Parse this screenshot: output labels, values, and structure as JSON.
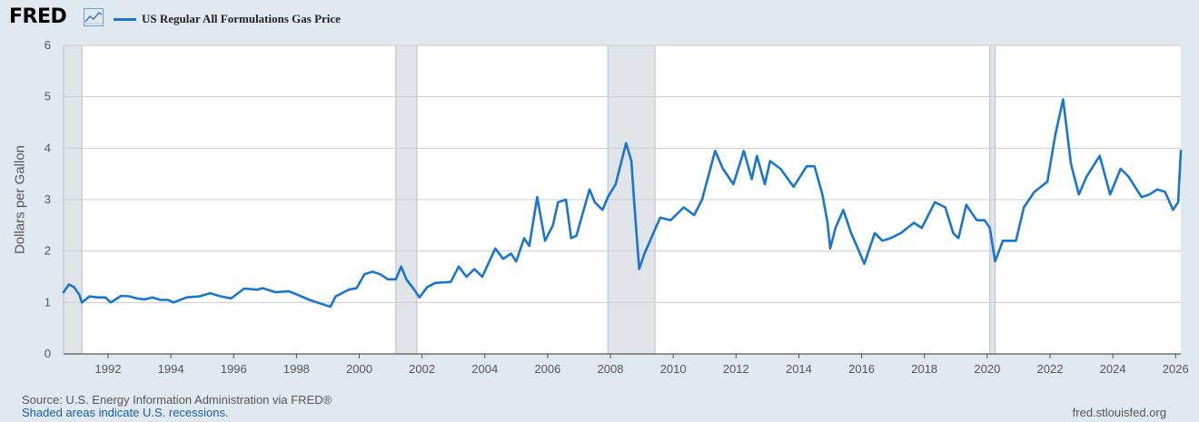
{
  "header": {
    "logo_text": "FRED",
    "logo_icon": "line-chart-icon",
    "legend_label": "US Regular All Formulations Gas Price"
  },
  "footer": {
    "source": "Source: U.S. Energy Information Administration via FRED®",
    "note": "Shaded areas indicate U.S. recessions.",
    "url": "fred.stlouisfed.org"
  },
  "colors": {
    "background": "#e1e9f0",
    "plot_area": "#ffffff",
    "series": "#1a75cf",
    "recession": "#e1e5ea",
    "grid": "#cccccc"
  },
  "chart_data": {
    "type": "line",
    "ylabel": "Dollars per Gallon",
    "xlabel": "",
    "ylim": [
      0,
      6
    ],
    "xlim": [
      "1990-08",
      "2026-03"
    ],
    "grid": true,
    "yticks": [
      "0",
      "1",
      "2",
      "3",
      "4",
      "5",
      "6"
    ],
    "xticks": [
      "1992",
      "1994",
      "1996",
      "1998",
      "2000",
      "2002",
      "2004",
      "2006",
      "2008",
      "2010",
      "2012",
      "2014",
      "2016",
      "2018",
      "2020",
      "2022",
      "2024",
      "2026"
    ],
    "recessions": [
      [
        "1990-08",
        "1991-03"
      ],
      [
        "2001-03",
        "2001-11"
      ],
      [
        "2007-12",
        "2009-06"
      ],
      [
        "2020-02",
        "2020-04"
      ]
    ],
    "series": [
      {
        "name": "US Regular All Formulations Gas Price",
        "points": [
          [
            "1990-08",
            1.2
          ],
          [
            "1990-10",
            1.35
          ],
          [
            "1990-12",
            1.3
          ],
          [
            "1991-02",
            1.15
          ],
          [
            "1991-03",
            1.0
          ],
          [
            "1991-06",
            1.12
          ],
          [
            "1991-09",
            1.1
          ],
          [
            "1991-12",
            1.1
          ],
          [
            "1992-02",
            1.0
          ],
          [
            "1992-06",
            1.13
          ],
          [
            "1992-09",
            1.12
          ],
          [
            "1992-12",
            1.08
          ],
          [
            "1993-03",
            1.06
          ],
          [
            "1993-06",
            1.1
          ],
          [
            "1993-09",
            1.05
          ],
          [
            "1993-12",
            1.05
          ],
          [
            "1994-02",
            1.0
          ],
          [
            "1994-07",
            1.1
          ],
          [
            "1994-12",
            1.12
          ],
          [
            "1995-04",
            1.18
          ],
          [
            "1995-08",
            1.12
          ],
          [
            "1995-12",
            1.08
          ],
          [
            "1996-05",
            1.27
          ],
          [
            "1996-10",
            1.25
          ],
          [
            "1996-12",
            1.28
          ],
          [
            "1997-05",
            1.2
          ],
          [
            "1997-10",
            1.22
          ],
          [
            "1997-12",
            1.18
          ],
          [
            "1998-06",
            1.05
          ],
          [
            "1998-12",
            0.95
          ],
          [
            "1999-02",
            0.92
          ],
          [
            "1999-04",
            1.12
          ],
          [
            "1999-09",
            1.25
          ],
          [
            "1999-12",
            1.28
          ],
          [
            "2000-03",
            1.55
          ],
          [
            "2000-06",
            1.6
          ],
          [
            "2000-09",
            1.55
          ],
          [
            "2000-12",
            1.45
          ],
          [
            "2001-03",
            1.45
          ],
          [
            "2001-05",
            1.7
          ],
          [
            "2001-07",
            1.45
          ],
          [
            "2001-10",
            1.25
          ],
          [
            "2001-12",
            1.1
          ],
          [
            "2002-03",
            1.3
          ],
          [
            "2002-06",
            1.38
          ],
          [
            "2002-12",
            1.4
          ],
          [
            "2003-03",
            1.7
          ],
          [
            "2003-06",
            1.5
          ],
          [
            "2003-09",
            1.65
          ],
          [
            "2003-12",
            1.5
          ],
          [
            "2004-05",
            2.05
          ],
          [
            "2004-08",
            1.85
          ],
          [
            "2004-11",
            1.95
          ],
          [
            "2005-01",
            1.8
          ],
          [
            "2005-04",
            2.25
          ],
          [
            "2005-06",
            2.1
          ],
          [
            "2005-09",
            3.05
          ],
          [
            "2005-12",
            2.2
          ],
          [
            "2006-03",
            2.5
          ],
          [
            "2006-05",
            2.95
          ],
          [
            "2006-08",
            3.0
          ],
          [
            "2006-10",
            2.25
          ],
          [
            "2006-12",
            2.3
          ],
          [
            "2007-05",
            3.2
          ],
          [
            "2007-07",
            2.95
          ],
          [
            "2007-10",
            2.8
          ],
          [
            "2007-12",
            3.05
          ],
          [
            "2008-03",
            3.3
          ],
          [
            "2008-07",
            4.1
          ],
          [
            "2008-09",
            3.75
          ],
          [
            "2008-10",
            3.0
          ],
          [
            "2008-12",
            1.65
          ],
          [
            "2009-02",
            1.95
          ],
          [
            "2009-05",
            2.3
          ],
          [
            "2009-08",
            2.65
          ],
          [
            "2009-12",
            2.6
          ],
          [
            "2010-05",
            2.85
          ],
          [
            "2010-09",
            2.7
          ],
          [
            "2010-12",
            3.0
          ],
          [
            "2011-05",
            3.95
          ],
          [
            "2011-08",
            3.6
          ],
          [
            "2011-12",
            3.3
          ],
          [
            "2012-04",
            3.95
          ],
          [
            "2012-07",
            3.4
          ],
          [
            "2012-09",
            3.85
          ],
          [
            "2012-12",
            3.3
          ],
          [
            "2013-02",
            3.75
          ],
          [
            "2013-06",
            3.6
          ],
          [
            "2013-11",
            3.25
          ],
          [
            "2014-04",
            3.65
          ],
          [
            "2014-07",
            3.65
          ],
          [
            "2014-10",
            3.1
          ],
          [
            "2014-12",
            2.55
          ],
          [
            "2015-01",
            2.05
          ],
          [
            "2015-03",
            2.45
          ],
          [
            "2015-06",
            2.8
          ],
          [
            "2015-09",
            2.35
          ],
          [
            "2015-12",
            2.0
          ],
          [
            "2016-02",
            1.75
          ],
          [
            "2016-06",
            2.35
          ],
          [
            "2016-09",
            2.2
          ],
          [
            "2016-12",
            2.25
          ],
          [
            "2017-04",
            2.35
          ],
          [
            "2017-09",
            2.55
          ],
          [
            "2017-12",
            2.45
          ],
          [
            "2018-05",
            2.95
          ],
          [
            "2018-09",
            2.85
          ],
          [
            "2018-12",
            2.35
          ],
          [
            "2019-02",
            2.25
          ],
          [
            "2019-05",
            2.9
          ],
          [
            "2019-09",
            2.6
          ],
          [
            "2019-12",
            2.6
          ],
          [
            "2020-02",
            2.45
          ],
          [
            "2020-04",
            1.8
          ],
          [
            "2020-07",
            2.2
          ],
          [
            "2020-12",
            2.2
          ],
          [
            "2021-03",
            2.85
          ],
          [
            "2021-07",
            3.15
          ],
          [
            "2021-12",
            3.35
          ],
          [
            "2022-03",
            4.25
          ],
          [
            "2022-06",
            4.95
          ],
          [
            "2022-09",
            3.7
          ],
          [
            "2022-12",
            3.1
          ],
          [
            "2023-03",
            3.45
          ],
          [
            "2023-08",
            3.85
          ],
          [
            "2023-12",
            3.1
          ],
          [
            "2024-04",
            3.6
          ],
          [
            "2024-07",
            3.45
          ],
          [
            "2024-12",
            3.05
          ],
          [
            "2025-03",
            3.1
          ],
          [
            "2025-06",
            3.2
          ],
          [
            "2025-09",
            3.15
          ],
          [
            "2025-12",
            2.8
          ],
          [
            "2026-02",
            2.95
          ],
          [
            "2026-03",
            3.95
          ]
        ]
      }
    ]
  }
}
